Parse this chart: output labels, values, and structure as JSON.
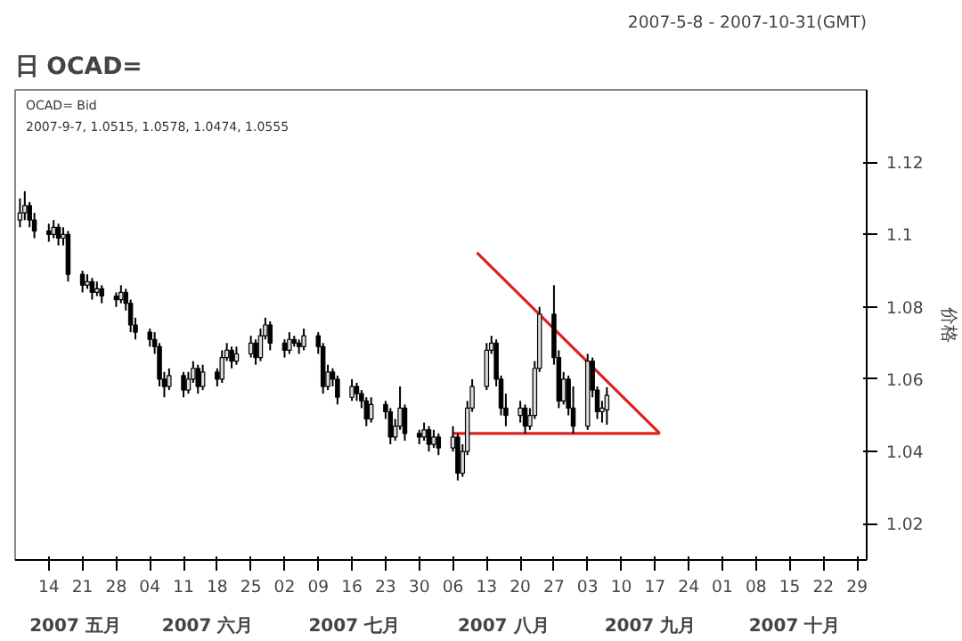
{
  "chart_data": {
    "type": "candlestick",
    "title": "日 OCAD=",
    "subtitle": "2007-5-8 - 2007-10-31(GMT)",
    "ylabel": "价格",
    "annotations": [
      "OCAD= Bid",
      "2007-9-7, 1.0515, 1.0578, 1.0474, 1.0555",
      "2007 五月",
      "2007 六月",
      "2007 七月",
      "2007 八月",
      "2007 九月",
      "2007 十月"
    ],
    "x": [
      "2007-05-08",
      "2007-05-09",
      "2007-05-10",
      "2007-05-11",
      "2007-05-14",
      "2007-05-15",
      "2007-05-16",
      "2007-05-17",
      "2007-05-18",
      "2007-05-21",
      "2007-05-22",
      "2007-05-23",
      "2007-05-24",
      "2007-05-25",
      "2007-05-28",
      "2007-05-29",
      "2007-05-30",
      "2007-05-31",
      "2007-06-01",
      "2007-06-04",
      "2007-06-05",
      "2007-06-06",
      "2007-06-07",
      "2007-06-08",
      "2007-06-11",
      "2007-06-12",
      "2007-06-13",
      "2007-06-14",
      "2007-06-15",
      "2007-06-18",
      "2007-06-19",
      "2007-06-20",
      "2007-06-21",
      "2007-06-22",
      "2007-06-25",
      "2007-06-26",
      "2007-06-27",
      "2007-06-28",
      "2007-06-29",
      "2007-07-02",
      "2007-07-03",
      "2007-07-04",
      "2007-07-05",
      "2007-07-06",
      "2007-07-09",
      "2007-07-10",
      "2007-07-11",
      "2007-07-12",
      "2007-07-13",
      "2007-07-16",
      "2007-07-17",
      "2007-07-18",
      "2007-07-19",
      "2007-07-20",
      "2007-07-23",
      "2007-07-24",
      "2007-07-25",
      "2007-07-26",
      "2007-07-27",
      "2007-07-30",
      "2007-07-31",
      "2007-08-01",
      "2007-08-02",
      "2007-08-03",
      "2007-08-06",
      "2007-08-07",
      "2007-08-08",
      "2007-08-09",
      "2007-08-10",
      "2007-08-13",
      "2007-08-14",
      "2007-08-15",
      "2007-08-16",
      "2007-08-17",
      "2007-08-20",
      "2007-08-21",
      "2007-08-22",
      "2007-08-23",
      "2007-08-24",
      "2007-08-27",
      "2007-08-28",
      "2007-08-29",
      "2007-08-30",
      "2007-08-31",
      "2007-09-03",
      "2007-09-04",
      "2007-09-05",
      "2007-09-06",
      "2007-09-07"
    ],
    "ohlc": [
      [
        1.104,
        1.11,
        1.102,
        1.106
      ],
      [
        1.106,
        1.112,
        1.104,
        1.108
      ],
      [
        1.108,
        1.109,
        1.102,
        1.104
      ],
      [
        1.104,
        1.106,
        1.099,
        1.101
      ],
      [
        1.101,
        1.103,
        1.098,
        1.1
      ],
      [
        1.1,
        1.104,
        1.099,
        1.102
      ],
      [
        1.102,
        1.103,
        1.097,
        1.099
      ],
      [
        1.099,
        1.102,
        1.097,
        1.1
      ],
      [
        1.1,
        1.101,
        1.087,
        1.089
      ],
      [
        1.089,
        1.09,
        1.084,
        1.086
      ],
      [
        1.086,
        1.089,
        1.085,
        1.087
      ],
      [
        1.087,
        1.088,
        1.082,
        1.084
      ],
      [
        1.084,
        1.087,
        1.083,
        1.085
      ],
      [
        1.085,
        1.086,
        1.081,
        1.083
      ],
      [
        1.083,
        1.084,
        1.08,
        1.082
      ],
      [
        1.082,
        1.086,
        1.081,
        1.084
      ],
      [
        1.084,
        1.085,
        1.079,
        1.081
      ],
      [
        1.081,
        1.082,
        1.073,
        1.075
      ],
      [
        1.075,
        1.077,
        1.071,
        1.073
      ],
      [
        1.073,
        1.074,
        1.069,
        1.071
      ],
      [
        1.071,
        1.073,
        1.067,
        1.069
      ],
      [
        1.069,
        1.07,
        1.058,
        1.06
      ],
      [
        1.06,
        1.062,
        1.055,
        1.058
      ],
      [
        1.058,
        1.063,
        1.057,
        1.061
      ],
      [
        1.061,
        1.062,
        1.055,
        1.057
      ],
      [
        1.057,
        1.062,
        1.056,
        1.06
      ],
      [
        1.06,
        1.065,
        1.059,
        1.063
      ],
      [
        1.063,
        1.064,
        1.056,
        1.058
      ],
      [
        1.058,
        1.064,
        1.057,
        1.062
      ],
      [
        1.062,
        1.063,
        1.058,
        1.06
      ],
      [
        1.06,
        1.068,
        1.059,
        1.066
      ],
      [
        1.066,
        1.07,
        1.065,
        1.068
      ],
      [
        1.068,
        1.069,
        1.063,
        1.065
      ],
      [
        1.065,
        1.069,
        1.064,
        1.067
      ],
      [
        1.067,
        1.072,
        1.066,
        1.07
      ],
      [
        1.07,
        1.071,
        1.064,
        1.066
      ],
      [
        1.066,
        1.074,
        1.065,
        1.072
      ],
      [
        1.072,
        1.077,
        1.071,
        1.075
      ],
      [
        1.075,
        1.076,
        1.068,
        1.07
      ],
      [
        1.07,
        1.071,
        1.066,
        1.068
      ],
      [
        1.068,
        1.073,
        1.067,
        1.071
      ],
      [
        1.071,
        1.072,
        1.069,
        1.07
      ],
      [
        1.07,
        1.071,
        1.067,
        1.069
      ],
      [
        1.069,
        1.074,
        1.068,
        1.072
      ],
      [
        1.072,
        1.073,
        1.067,
        1.069
      ],
      [
        1.069,
        1.07,
        1.056,
        1.058
      ],
      [
        1.058,
        1.064,
        1.057,
        1.062
      ],
      [
        1.062,
        1.063,
        1.058,
        1.06
      ],
      [
        1.06,
        1.061,
        1.053,
        1.055
      ],
      [
        1.055,
        1.06,
        1.054,
        1.058
      ],
      [
        1.058,
        1.059,
        1.054,
        1.056
      ],
      [
        1.056,
        1.057,
        1.052,
        1.054
      ],
      [
        1.054,
        1.055,
        1.047,
        1.049
      ],
      [
        1.049,
        1.055,
        1.048,
        1.053
      ],
      [
        1.053,
        1.054,
        1.049,
        1.051
      ],
      [
        1.051,
        1.052,
        1.042,
        1.044
      ],
      [
        1.044,
        1.049,
        1.043,
        1.047
      ],
      [
        1.047,
        1.058,
        1.046,
        1.052
      ],
      [
        1.052,
        1.053,
        1.043,
        1.045
      ],
      [
        1.045,
        1.046,
        1.042,
        1.044
      ],
      [
        1.044,
        1.048,
        1.043,
        1.046
      ],
      [
        1.046,
        1.047,
        1.04,
        1.042
      ],
      [
        1.042,
        1.046,
        1.041,
        1.044
      ],
      [
        1.044,
        1.045,
        1.039,
        1.041
      ],
      [
        1.041,
        1.047,
        1.04,
        1.044
      ],
      [
        1.044,
        1.045,
        1.032,
        1.034
      ],
      [
        1.034,
        1.042,
        1.033,
        1.04
      ],
      [
        1.04,
        1.054,
        1.039,
        1.052
      ],
      [
        1.052,
        1.06,
        1.051,
        1.058
      ],
      [
        1.058,
        1.07,
        1.057,
        1.068
      ],
      [
        1.068,
        1.072,
        1.067,
        1.07
      ],
      [
        1.07,
        1.071,
        1.058,
        1.06
      ],
      [
        1.06,
        1.061,
        1.05,
        1.052
      ],
      [
        1.052,
        1.056,
        1.047,
        1.05
      ],
      [
        1.05,
        1.054,
        1.048,
        1.052
      ],
      [
        1.052,
        1.053,
        1.045,
        1.047
      ],
      [
        1.047,
        1.052,
        1.046,
        1.05
      ],
      [
        1.05,
        1.065,
        1.049,
        1.063
      ],
      [
        1.063,
        1.08,
        1.062,
        1.078
      ],
      [
        1.078,
        1.086,
        1.064,
        1.066
      ],
      [
        1.066,
        1.068,
        1.052,
        1.054
      ],
      [
        1.054,
        1.062,
        1.053,
        1.06
      ],
      [
        1.06,
        1.061,
        1.05,
        1.052
      ],
      [
        1.052,
        1.058,
        1.045,
        1.047
      ],
      [
        1.047,
        1.067,
        1.046,
        1.065
      ],
      [
        1.065,
        1.066,
        1.055,
        1.057
      ],
      [
        1.057,
        1.058,
        1.049,
        1.051
      ],
      [
        1.051,
        1.054,
        1.048,
        1.052
      ],
      [
        1.0515,
        1.0578,
        1.0474,
        1.0555
      ]
    ],
    "series": [
      {
        "type": "line",
        "color": "#e02020",
        "x": [
          "2007-08-06",
          "2007-09-18"
        ],
        "values": [
          1.045,
          1.045
        ]
      },
      {
        "type": "line",
        "color": "#e02020",
        "x": [
          "2007-08-11",
          "2007-09-18"
        ],
        "values": [
          1.095,
          1.045
        ]
      }
    ],
    "xlim": [
      "2007-05-07",
      "2007-10-31"
    ],
    "xticks": [
      {
        "value": "2007-05-14",
        "label": "14"
      },
      {
        "value": "2007-05-21",
        "label": "21"
      },
      {
        "value": "2007-05-28",
        "label": "28"
      },
      {
        "value": "2007-06-04",
        "label": "04"
      },
      {
        "value": "2007-06-11",
        "label": "11"
      },
      {
        "value": "2007-06-18",
        "label": "18"
      },
      {
        "value": "2007-06-25",
        "label": "25"
      },
      {
        "value": "2007-07-02",
        "label": "02"
      },
      {
        "value": "2007-07-09",
        "label": "09"
      },
      {
        "value": "2007-07-16",
        "label": "16"
      },
      {
        "value": "2007-07-23",
        "label": "23"
      },
      {
        "value": "2007-07-30",
        "label": "30"
      },
      {
        "value": "2007-08-06",
        "label": "06"
      },
      {
        "value": "2007-08-13",
        "label": "13"
      },
      {
        "value": "2007-08-20",
        "label": "20"
      },
      {
        "value": "2007-08-27",
        "label": "27"
      },
      {
        "value": "2007-09-03",
        "label": "03"
      },
      {
        "value": "2007-09-10",
        "label": "10"
      },
      {
        "value": "2007-09-17",
        "label": "17"
      },
      {
        "value": "2007-09-24",
        "label": "24"
      },
      {
        "value": "2007-10-01",
        "label": "01"
      },
      {
        "value": "2007-10-08",
        "label": "08"
      },
      {
        "value": "2007-10-15",
        "label": "15"
      },
      {
        "value": "2007-10-22",
        "label": "22"
      },
      {
        "value": "2007-10-29",
        "label": "29"
      }
    ],
    "ylim": [
      1.01,
      1.14
    ],
    "yticks": [
      1.02,
      1.04,
      1.06,
      1.08,
      1.1,
      1.12
    ],
    "grid": false
  }
}
